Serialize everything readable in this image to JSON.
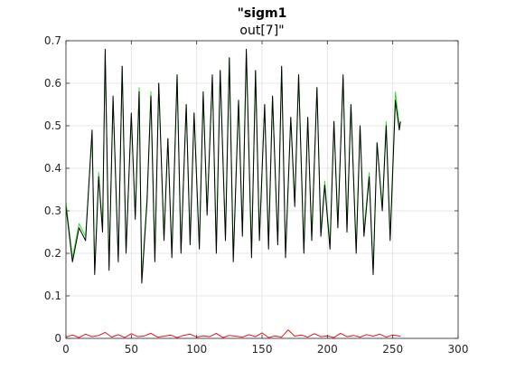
{
  "chart_data": {
    "type": "line",
    "title_line1": "\"sigm1",
    "title_line2": "out[7]\"",
    "xlabel": "",
    "ylabel": "",
    "xlim": [
      0,
      300
    ],
    "ylim": [
      0,
      0.7
    ],
    "xticks": [
      0,
      50,
      100,
      150,
      200,
      250,
      300
    ],
    "yticks": [
      0,
      0.1,
      0.2,
      0.3,
      0.4,
      0.5,
      0.6,
      0.7
    ],
    "grid": true,
    "legend": "none",
    "series": [
      {
        "key": "green",
        "color": "#33dd33",
        "x": [
          0,
          5,
          10,
          15,
          20,
          22,
          25,
          28,
          30,
          33,
          36,
          40,
          43,
          46,
          50,
          53,
          56,
          58,
          62,
          65,
          68,
          71,
          75,
          78,
          81,
          85,
          88,
          92,
          95,
          98,
          102,
          105,
          108,
          112,
          115,
          118,
          122,
          125,
          128,
          132,
          135,
          138,
          142,
          145,
          148,
          152,
          155,
          158,
          162,
          165,
          168,
          172,
          175,
          178,
          182,
          185,
          188,
          192,
          195,
          198,
          202,
          205,
          208,
          212,
          215,
          218,
          222,
          225,
          228,
          232,
          235,
          238,
          242,
          245,
          248,
          252,
          255,
          256
        ],
        "values": [
          0.32,
          0.19,
          0.27,
          0.24,
          0.48,
          0.16,
          0.39,
          0.26,
          0.67,
          0.17,
          0.56,
          0.19,
          0.64,
          0.21,
          0.52,
          0.29,
          0.59,
          0.14,
          0.33,
          0.58,
          0.19,
          0.6,
          0.24,
          0.47,
          0.2,
          0.62,
          0.21,
          0.55,
          0.23,
          0.53,
          0.22,
          0.57,
          0.3,
          0.61,
          0.21,
          0.63,
          0.24,
          0.66,
          0.19,
          0.56,
          0.25,
          0.67,
          0.2,
          0.63,
          0.24,
          0.55,
          0.22,
          0.57,
          0.23,
          0.64,
          0.2,
          0.52,
          0.32,
          0.62,
          0.21,
          0.52,
          0.24,
          0.59,
          0.25,
          0.37,
          0.22,
          0.51,
          0.27,
          0.61,
          0.26,
          0.55,
          0.21,
          0.5,
          0.25,
          0.39,
          0.16,
          0.46,
          0.31,
          0.51,
          0.24,
          0.58,
          0.5,
          0.51
        ]
      },
      {
        "key": "black",
        "color": "#000000",
        "x": [
          0,
          5,
          10,
          15,
          20,
          22,
          25,
          28,
          30,
          33,
          36,
          40,
          43,
          46,
          50,
          53,
          56,
          58,
          62,
          65,
          68,
          71,
          75,
          78,
          81,
          85,
          88,
          92,
          95,
          98,
          102,
          105,
          108,
          112,
          115,
          118,
          122,
          125,
          128,
          132,
          135,
          138,
          142,
          145,
          148,
          152,
          155,
          158,
          162,
          165,
          168,
          172,
          175,
          178,
          182,
          185,
          188,
          192,
          195,
          198,
          202,
          205,
          208,
          212,
          215,
          218,
          222,
          225,
          228,
          232,
          235,
          238,
          242,
          245,
          248,
          252,
          255,
          256
        ],
        "values": [
          0.31,
          0.18,
          0.26,
          0.23,
          0.49,
          0.15,
          0.38,
          0.25,
          0.68,
          0.16,
          0.57,
          0.18,
          0.64,
          0.2,
          0.53,
          0.28,
          0.58,
          0.13,
          0.32,
          0.57,
          0.18,
          0.6,
          0.23,
          0.47,
          0.19,
          0.62,
          0.2,
          0.55,
          0.22,
          0.53,
          0.21,
          0.58,
          0.29,
          0.62,
          0.2,
          0.63,
          0.23,
          0.66,
          0.18,
          0.56,
          0.24,
          0.68,
          0.19,
          0.63,
          0.23,
          0.55,
          0.21,
          0.57,
          0.22,
          0.64,
          0.19,
          0.52,
          0.31,
          0.62,
          0.2,
          0.52,
          0.23,
          0.59,
          0.24,
          0.36,
          0.21,
          0.51,
          0.26,
          0.62,
          0.25,
          0.55,
          0.2,
          0.5,
          0.24,
          0.38,
          0.15,
          0.46,
          0.3,
          0.5,
          0.23,
          0.56,
          0.49,
          0.51
        ]
      },
      {
        "key": "red",
        "color": "#ee1111",
        "x": [
          0,
          5,
          10,
          15,
          20,
          25,
          30,
          35,
          40,
          45,
          50,
          55,
          60,
          65,
          70,
          75,
          80,
          85,
          90,
          95,
          100,
          105,
          110,
          115,
          120,
          125,
          130,
          135,
          140,
          145,
          150,
          155,
          160,
          165,
          170,
          175,
          180,
          185,
          190,
          195,
          200,
          205,
          210,
          215,
          220,
          225,
          230,
          235,
          240,
          245,
          250,
          256
        ],
        "values": [
          0.003,
          0.008,
          0.002,
          0.01,
          0.004,
          0.007,
          0.014,
          0.003,
          0.009,
          0.002,
          0.011,
          0.004,
          0.006,
          0.012,
          0.003,
          0.005,
          0.008,
          0.002,
          0.007,
          0.01,
          0.003,
          0.006,
          0.004,
          0.012,
          0.002,
          0.007,
          0.005,
          0.003,
          0.009,
          0.004,
          0.013,
          0.002,
          0.006,
          0.003,
          0.02,
          0.005,
          0.008,
          0.003,
          0.011,
          0.004,
          0.006,
          0.002,
          0.012,
          0.004,
          0.007,
          0.003,
          0.009,
          0.005,
          0.01,
          0.003,
          0.008,
          0.005
        ]
      }
    ]
  }
}
